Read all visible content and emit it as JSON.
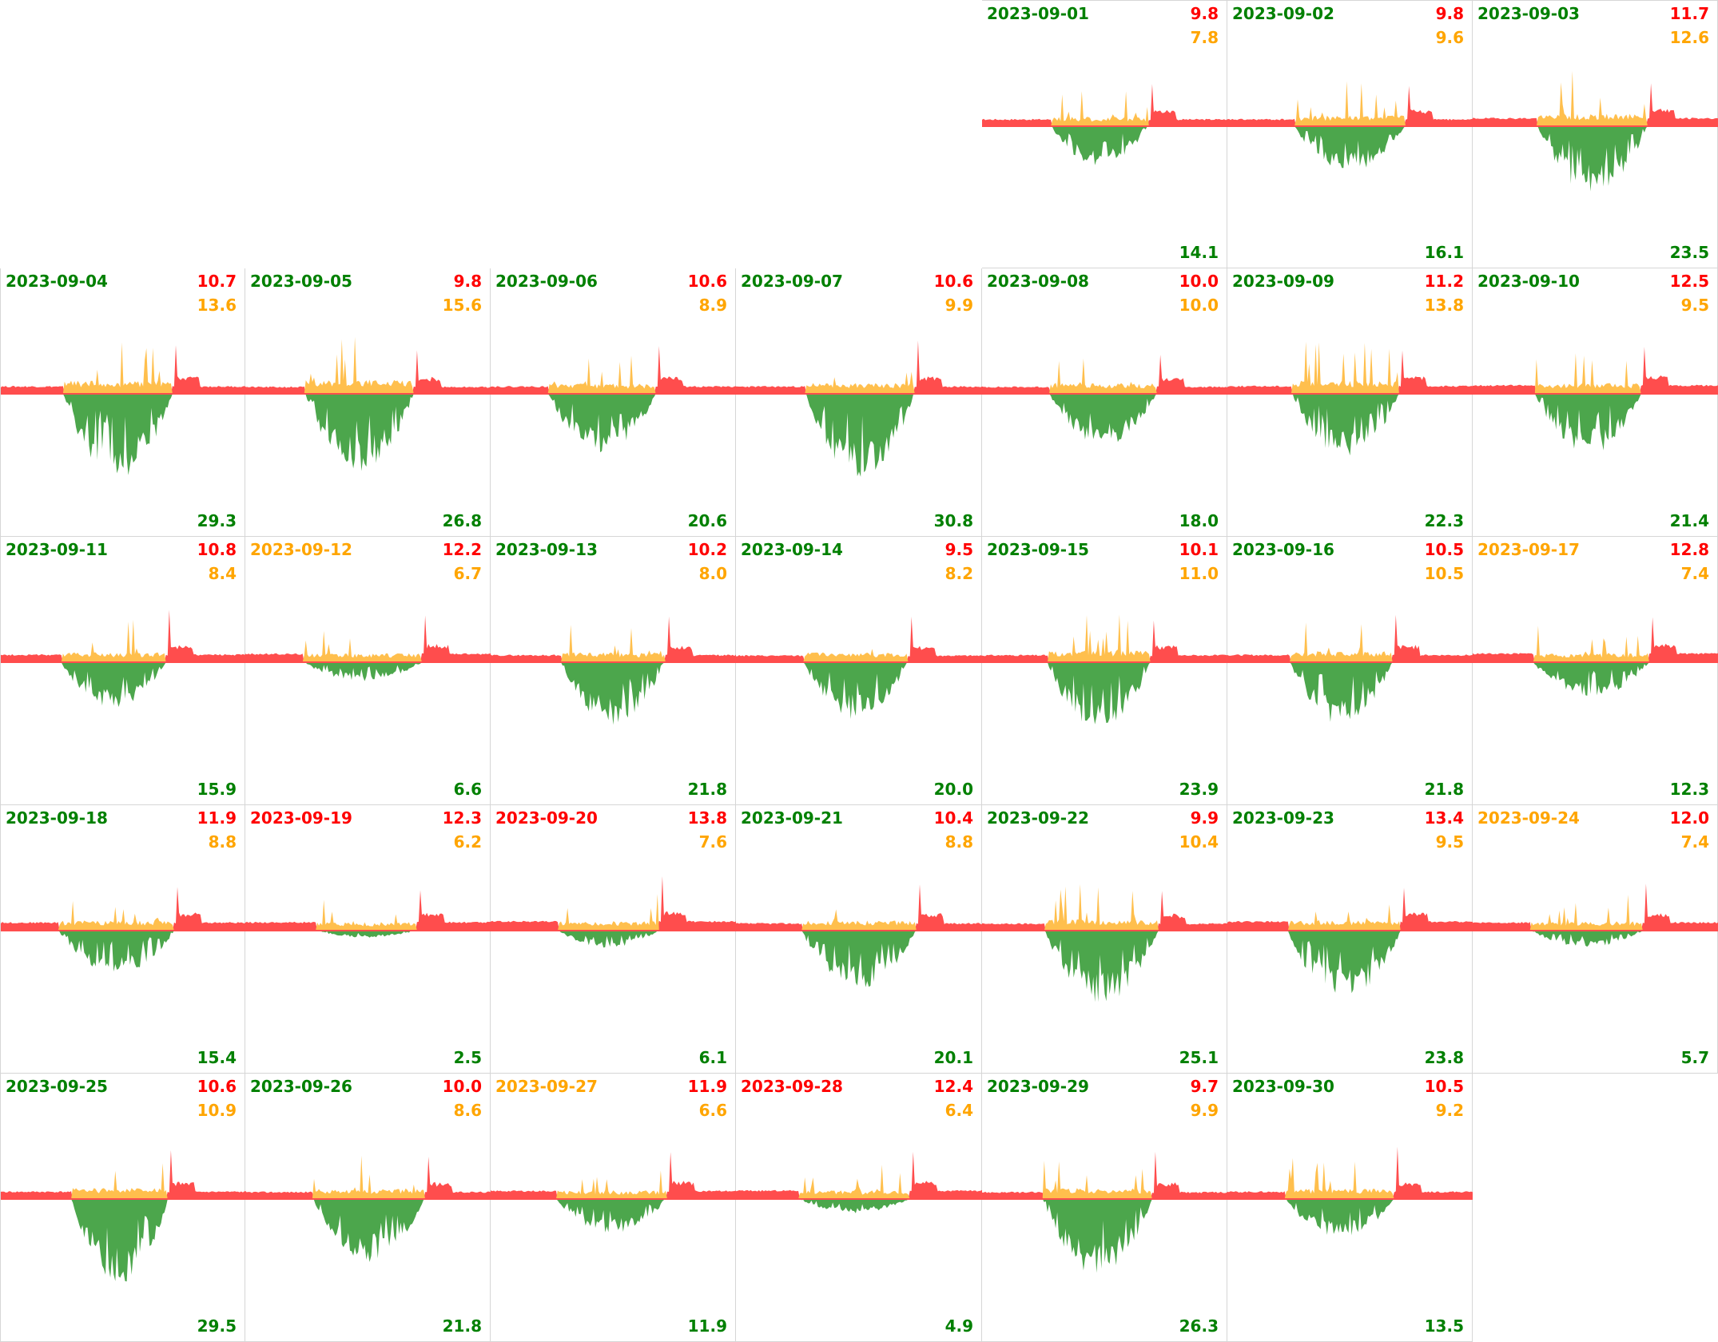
{
  "colors": {
    "green": "#008000",
    "orange": "#FFA500",
    "red": "#FF0000",
    "export_fill": "#4CA64C",
    "self_fill": "#FFBF4D",
    "import_fill": "#FF4D4D"
  },
  "chart_data": {
    "type": "area",
    "title": "",
    "days": [
      {
        "date": "2023-09-01",
        "import": "9.8",
        "self": "7.8",
        "export": "14.1",
        "date_color": "green"
      },
      {
        "date": "2023-09-02",
        "import": "9.8",
        "self": "9.6",
        "export": "16.1",
        "date_color": "green"
      },
      {
        "date": "2023-09-03",
        "import": "11.7",
        "self": "12.6",
        "export": "23.5",
        "date_color": "green"
      },
      {
        "date": "2023-09-04",
        "import": "10.7",
        "self": "13.6",
        "export": "29.3",
        "date_color": "green"
      },
      {
        "date": "2023-09-05",
        "import": "9.8",
        "self": "15.6",
        "export": "26.8",
        "date_color": "green"
      },
      {
        "date": "2023-09-06",
        "import": "10.6",
        "self": "8.9",
        "export": "20.6",
        "date_color": "green"
      },
      {
        "date": "2023-09-07",
        "import": "10.6",
        "self": "9.9",
        "export": "30.8",
        "date_color": "green"
      },
      {
        "date": "2023-09-08",
        "import": "10.0",
        "self": "10.0",
        "export": "18.0",
        "date_color": "green"
      },
      {
        "date": "2023-09-09",
        "import": "11.2",
        "self": "13.8",
        "export": "22.3",
        "date_color": "green"
      },
      {
        "date": "2023-09-10",
        "import": "12.5",
        "self": "9.5",
        "export": "21.4",
        "date_color": "green"
      },
      {
        "date": "2023-09-11",
        "import": "10.8",
        "self": "8.4",
        "export": "15.9",
        "date_color": "green"
      },
      {
        "date": "2023-09-12",
        "import": "12.2",
        "self": "6.7",
        "export": "6.6",
        "date_color": "orange"
      },
      {
        "date": "2023-09-13",
        "import": "10.2",
        "self": "8.0",
        "export": "21.8",
        "date_color": "green"
      },
      {
        "date": "2023-09-14",
        "import": "9.5",
        "self": "8.2",
        "export": "20.0",
        "date_color": "green"
      },
      {
        "date": "2023-09-15",
        "import": "10.1",
        "self": "11.0",
        "export": "23.9",
        "date_color": "green"
      },
      {
        "date": "2023-09-16",
        "import": "10.5",
        "self": "10.5",
        "export": "21.8",
        "date_color": "green"
      },
      {
        "date": "2023-09-17",
        "import": "12.8",
        "self": "7.4",
        "export": "12.3",
        "date_color": "orange"
      },
      {
        "date": "2023-09-18",
        "import": "11.9",
        "self": "8.8",
        "export": "15.4",
        "date_color": "green"
      },
      {
        "date": "2023-09-19",
        "import": "12.3",
        "self": "6.2",
        "export": "2.5",
        "date_color": "red"
      },
      {
        "date": "2023-09-20",
        "import": "13.8",
        "self": "7.6",
        "export": "6.1",
        "date_color": "red"
      },
      {
        "date": "2023-09-21",
        "import": "10.4",
        "self": "8.8",
        "export": "20.1",
        "date_color": "green"
      },
      {
        "date": "2023-09-22",
        "import": "9.9",
        "self": "10.4",
        "export": "25.1",
        "date_color": "green"
      },
      {
        "date": "2023-09-23",
        "import": "13.4",
        "self": "9.5",
        "export": "23.8",
        "date_color": "green"
      },
      {
        "date": "2023-09-24",
        "import": "12.0",
        "self": "7.4",
        "export": "5.7",
        "date_color": "orange"
      },
      {
        "date": "2023-09-25",
        "import": "10.6",
        "self": "10.9",
        "export": "29.5",
        "date_color": "green"
      },
      {
        "date": "2023-09-26",
        "import": "10.0",
        "self": "8.6",
        "export": "21.8",
        "date_color": "green"
      },
      {
        "date": "2023-09-27",
        "import": "11.9",
        "self": "6.6",
        "export": "11.9",
        "date_color": "orange"
      },
      {
        "date": "2023-09-28",
        "import": "12.4",
        "self": "6.4",
        "export": "4.9",
        "date_color": "red"
      },
      {
        "date": "2023-09-29",
        "import": "9.7",
        "self": "9.9",
        "export": "26.3",
        "date_color": "green"
      },
      {
        "date": "2023-09-30",
        "import": "10.5",
        "self": "9.2",
        "export": "13.5",
        "date_color": "green"
      }
    ]
  }
}
